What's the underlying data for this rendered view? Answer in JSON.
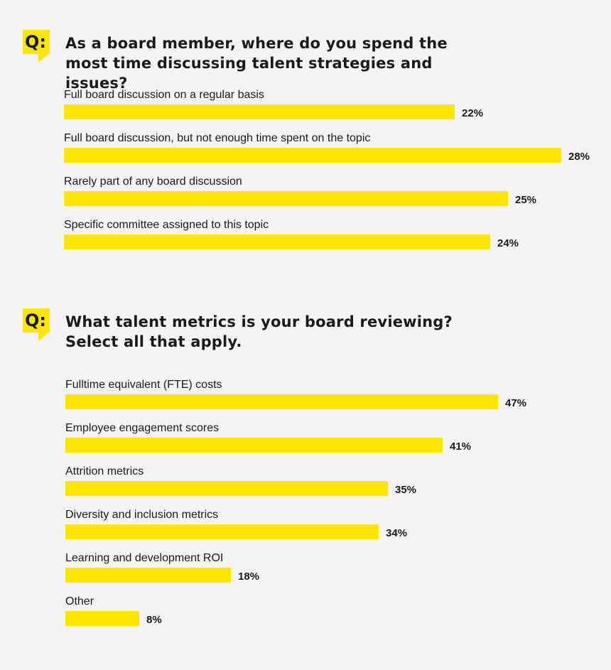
{
  "chart_data": [
    {
      "type": "bar",
      "orientation": "horizontal",
      "title": "As a board member, where do you spend the most time discussing talent strategies and issues?",
      "badge": "Q:",
      "categories": [
        "Full board discussion on a regular basis",
        "Full board discussion, but not enough time spent on the topic",
        "Rarely part of any board discussion",
        "Specific committee assigned to this topic"
      ],
      "values": [
        22,
        28,
        25,
        24
      ],
      "labels": [
        "22%",
        "28%",
        "25%",
        "24%"
      ],
      "unit": "%",
      "xlim": [
        0,
        28
      ],
      "grid": false,
      "bar_color": "#ffe600"
    },
    {
      "type": "bar",
      "orientation": "horizontal",
      "title": "What talent metrics is your board reviewing? Select all that apply.",
      "badge": "Q:",
      "categories": [
        "Fulltime equivalent (FTE) costs",
        "Employee engagement scores",
        "Attrition metrics",
        "Diversity and inclusion metrics",
        "Learning and development ROI",
        "Other"
      ],
      "values": [
        47,
        41,
        35,
        34,
        18,
        8
      ],
      "labels": [
        "47%",
        "41%",
        "35%",
        "34%",
        "18%",
        "8%"
      ],
      "unit": "%",
      "xlim": [
        0,
        47
      ],
      "grid": false,
      "bar_color": "#ffe600"
    }
  ]
}
